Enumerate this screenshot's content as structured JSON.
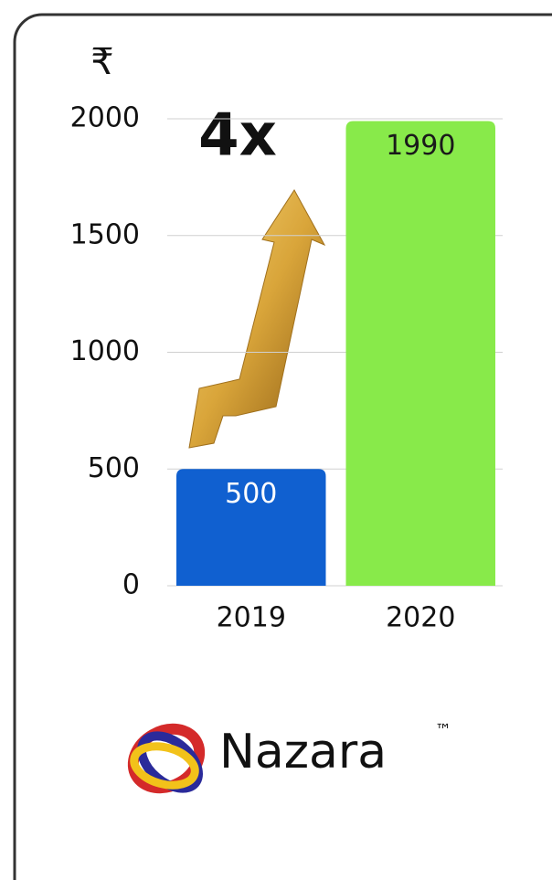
{
  "chart_data": {
    "type": "bar",
    "y_label": "₹",
    "annotation": "4x",
    "categories": [
      "2019",
      "2020"
    ],
    "values": [
      500,
      1990
    ],
    "colors": [
      "#1060d0",
      "#88ea4a"
    ],
    "value_label_colors": [
      "#ffffff",
      "#1a1a1a"
    ],
    "ylim": [
      0,
      2000
    ],
    "yticks": [
      0,
      500,
      1000,
      1500,
      2000
    ],
    "grid": true
  },
  "logo": {
    "name": "Nazara",
    "mark": "™"
  }
}
